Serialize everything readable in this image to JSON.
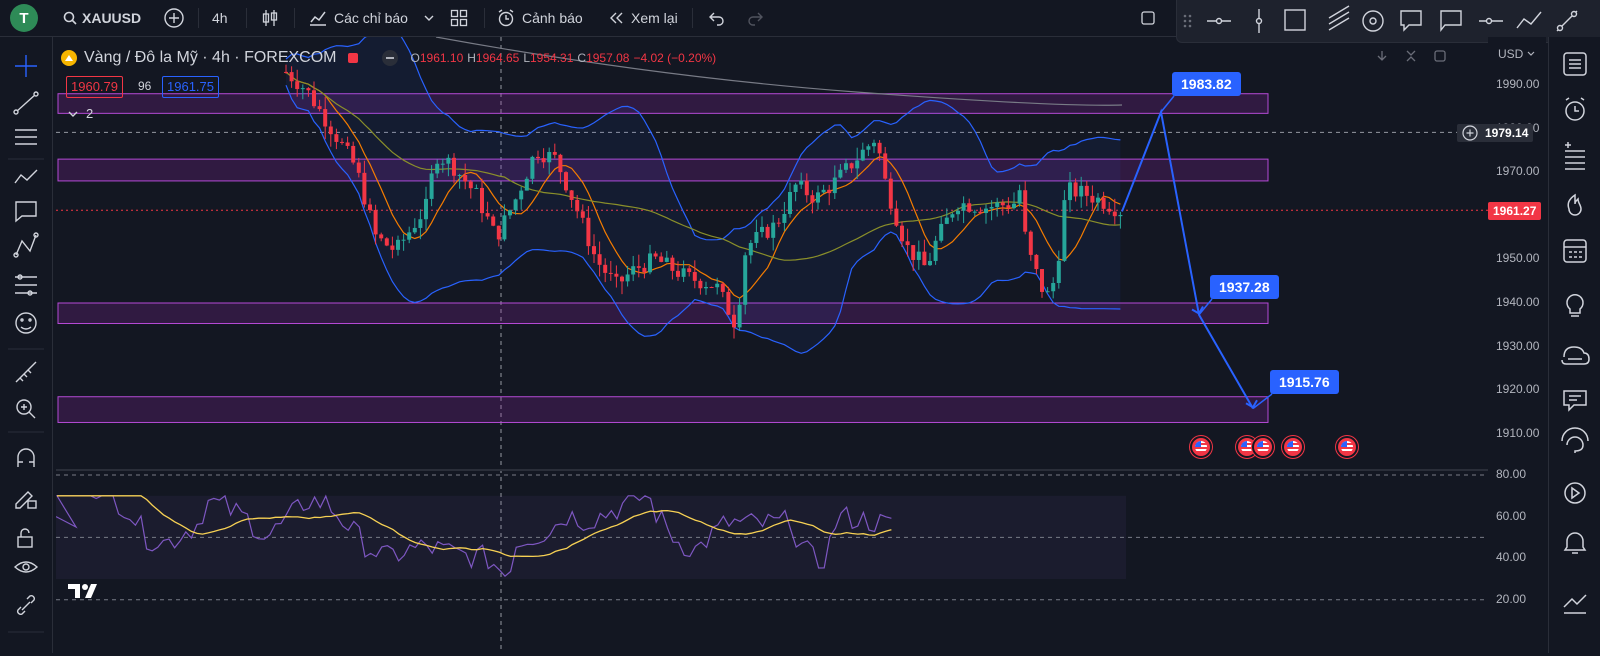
{
  "topbar": {
    "avatar": "T",
    "symbol": "XAUUSD",
    "interval": "4h",
    "indicators_label": "Các chỉ báo",
    "alert_label": "Cảnh báo",
    "replay_label": "Xem lại"
  },
  "legend": {
    "title": "Vàng / Đô la Mỹ · 4h · FOREXCOM",
    "open_label": "O",
    "open": "1961.10",
    "high_label": "H",
    "high": "1964.65",
    "low_label": "L",
    "low": "1954.31",
    "close_label": "C",
    "close": "1957.08",
    "change": "−4.02 (−0.20%)",
    "bid": "1960.79",
    "spread": "96",
    "ask": "1961.75",
    "collapsed_count": "2"
  },
  "axis": {
    "currency": "USD",
    "price_ticks": [
      "1990.00",
      "1980.00",
      "1970.00",
      "1960.00",
      "1950.00",
      "1940.00",
      "1930.00",
      "1920.00",
      "1910.00"
    ],
    "crosshair_price": "1979.14",
    "last_price": "1961.27",
    "rsi_ticks": [
      "80.00",
      "60.00",
      "40.00",
      "20.00"
    ]
  },
  "annotations": {
    "target_high": "1983.82",
    "target_mid": "1937.28",
    "target_low": "1915.76"
  },
  "colors": {
    "background": "#131722",
    "bull": "#26a69a",
    "bear": "#f23645",
    "accent": "#2962ff",
    "zone": "#9c27b0"
  },
  "icons": {
    "left_tools": [
      "crosshair-icon",
      "trend-line-icon",
      "fib-icon",
      "pattern-icon",
      "annotation-icon",
      "projection-icon",
      "measure-icon",
      "emoji-icon",
      "ruler-icon",
      "zoom-icon",
      "magnet-icon",
      "lock-draw-icon",
      "lock-icon",
      "eye-icon",
      "link-icon"
    ],
    "right_tools": [
      "watchlist-icon",
      "alarm-icon",
      "add-list-icon",
      "hotlist-icon",
      "calendar-icon",
      "ideas-icon",
      "news-icon",
      "chat-icon",
      "help-icon",
      "stream-icon",
      "bell-icon",
      "chart-icon"
    ]
  }
}
